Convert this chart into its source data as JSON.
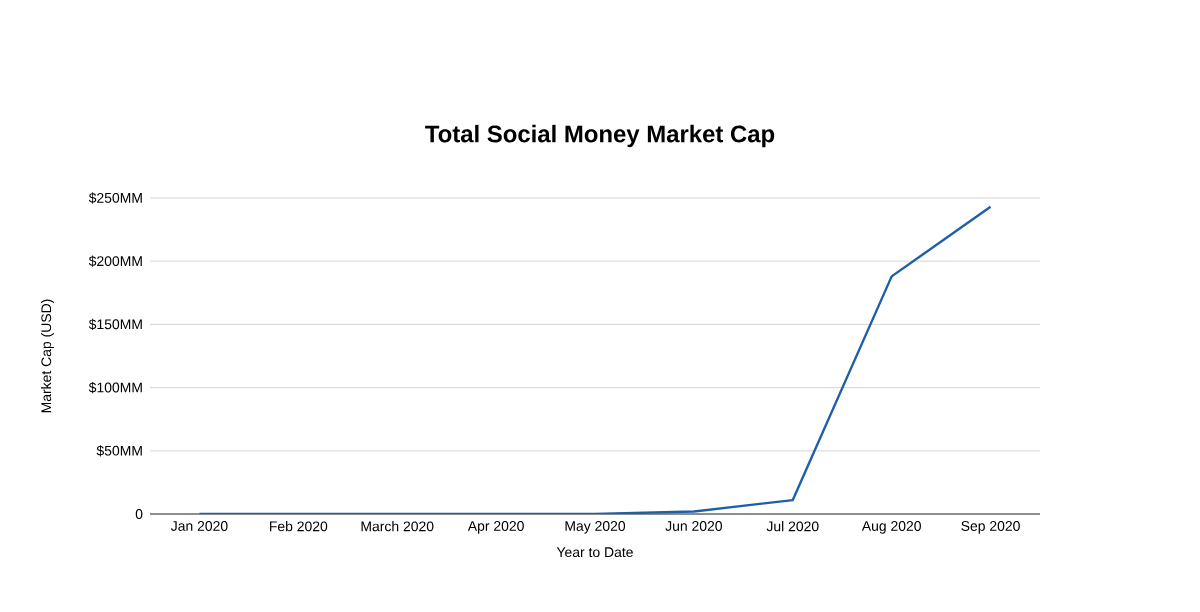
{
  "chart_data": {
    "type": "line",
    "title": "Total Social Money Market Cap",
    "xlabel": "Year to Date",
    "ylabel": "Market Cap (USD)",
    "categories": [
      "Jan 2020",
      "Feb 2020",
      "March 2020",
      "Apr 2020",
      "May 2020",
      "Jun 2020",
      "Jul 2020",
      "Aug 2020",
      "Sep 2020"
    ],
    "values": [
      0,
      0,
      0,
      0,
      0,
      2,
      11,
      188,
      243
    ],
    "color": "#1f5fa8",
    "ylim": [
      0,
      250
    ],
    "yticks": [
      0,
      {
        "value": 50,
        "label": "$50MM"
      },
      {
        "value": 100,
        "label": "$100MM"
      },
      {
        "value": 150,
        "label": "$150MM"
      },
      {
        "value": 200,
        "label": "$200MM"
      },
      {
        "value": 250,
        "label": "$250MM"
      }
    ],
    "grid": "y",
    "marker": "none",
    "line_style": "solid"
  }
}
